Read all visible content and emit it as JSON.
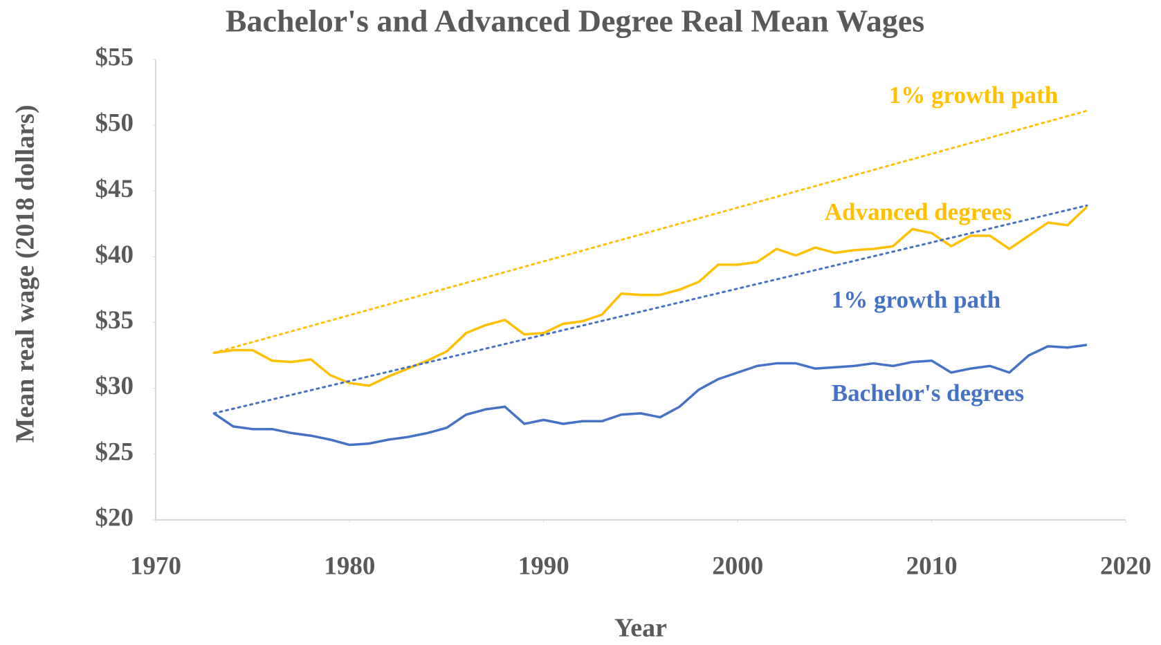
{
  "chart_data": {
    "type": "line",
    "title": "Bachelor's and Advanced Degree Real Mean Wages",
    "x_label": "Year",
    "y_label": "Mean real wage (2018 dollars)",
    "xlim": [
      1970,
      2020
    ],
    "xticks": [
      1970,
      1980,
      1990,
      2000,
      2010,
      2020
    ],
    "ylim": [
      20,
      55
    ],
    "yticks": [
      {
        "value": 20,
        "label": "$20"
      },
      {
        "value": 25,
        "label": "$25"
      },
      {
        "value": 30,
        "label": "$30"
      },
      {
        "value": 35,
        "label": "$35"
      },
      {
        "value": 40,
        "label": "$40"
      },
      {
        "value": 45,
        "label": "$45"
      },
      {
        "value": 50,
        "label": "$50"
      },
      {
        "value": 55,
        "label": "$55"
      }
    ],
    "grid": false,
    "series": [
      {
        "name": "Advanced degrees",
        "color": "#FFC000",
        "style": "solid",
        "x": [
          1973,
          1974,
          1975,
          1976,
          1977,
          1978,
          1979,
          1980,
          1981,
          1982,
          1983,
          1984,
          1985,
          1986,
          1987,
          1988,
          1989,
          1990,
          1991,
          1992,
          1993,
          1994,
          1995,
          1996,
          1997,
          1998,
          1999,
          2000,
          2001,
          2002,
          2003,
          2004,
          2005,
          2006,
          2007,
          2008,
          2009,
          2010,
          2011,
          2012,
          2013,
          2014,
          2015,
          2016,
          2017,
          2018
        ],
        "values": [
          32.7,
          32.9,
          32.9,
          32.1,
          32.0,
          32.2,
          31.0,
          30.4,
          30.2,
          30.9,
          31.5,
          32.1,
          32.8,
          34.2,
          34.8,
          35.2,
          34.1,
          34.2,
          34.9,
          35.1,
          35.6,
          37.2,
          37.1,
          37.1,
          37.5,
          38.1,
          39.4,
          39.4,
          39.6,
          40.6,
          40.1,
          40.7,
          40.3,
          40.5,
          40.6,
          40.8,
          42.1,
          41.8,
          40.8,
          41.6,
          41.6,
          40.6,
          41.6,
          42.6,
          42.4,
          43.8
        ]
      },
      {
        "name": "Bachelor's degrees",
        "color": "#4472C4",
        "style": "solid",
        "x": [
          1973,
          1974,
          1975,
          1976,
          1977,
          1978,
          1979,
          1980,
          1981,
          1982,
          1983,
          1984,
          1985,
          1986,
          1987,
          1988,
          1989,
          1990,
          1991,
          1992,
          1993,
          1994,
          1995,
          1996,
          1997,
          1998,
          1999,
          2000,
          2001,
          2002,
          2003,
          2004,
          2005,
          2006,
          2007,
          2008,
          2009,
          2010,
          2011,
          2012,
          2013,
          2014,
          2015,
          2016,
          2017,
          2018
        ],
        "values": [
          28.1,
          27.1,
          26.9,
          26.9,
          26.6,
          26.4,
          26.1,
          25.7,
          25.8,
          26.1,
          26.3,
          26.6,
          27.0,
          28.0,
          28.4,
          28.6,
          27.3,
          27.6,
          27.3,
          27.5,
          27.5,
          28.0,
          28.1,
          27.8,
          28.6,
          29.9,
          30.7,
          31.2,
          31.7,
          31.9,
          31.9,
          31.5,
          31.6,
          31.7,
          31.9,
          31.7,
          32.0,
          32.1,
          31.2,
          31.5,
          31.7,
          31.2,
          32.5,
          33.2,
          33.1,
          33.3
        ]
      },
      {
        "name": "1% growth path",
        "color": "#FFC000",
        "style": "dotted",
        "x": [
          1973,
          2018
        ],
        "values": [
          32.7,
          51.1
        ]
      },
      {
        "name": "1% growth path",
        "color": "#4472C4",
        "style": "dotted",
        "x": [
          1973,
          2018
        ],
        "values": [
          28.1,
          43.9
        ]
      }
    ]
  }
}
